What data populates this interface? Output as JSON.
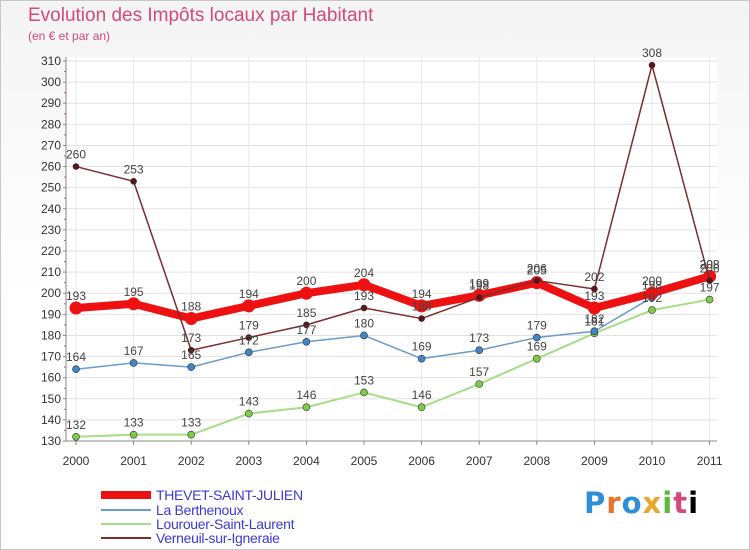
{
  "title": "Evolution des Impôts locaux par Habitant",
  "subtitle": "(en € et par an)",
  "brand": "Proxiti",
  "chart_data": {
    "type": "line",
    "title": "Evolution des Impôts locaux par Habitant",
    "subtitle": "(en € et par an)",
    "xlabel": "",
    "ylabel": "",
    "ylim": [
      130,
      310
    ],
    "ytick_step": 10,
    "grid": true,
    "legend_position": "bottom-left",
    "categories": [
      "2000",
      "2001",
      "2002",
      "2003",
      "2004",
      "2005",
      "2006",
      "2007",
      "2008",
      "2009",
      "2010",
      "2011"
    ],
    "series": [
      {
        "name": "THEVET-SAINT-JULIEN",
        "color": "#ee1111",
        "marker": "#ee1111",
        "values": [
          193,
          195,
          188,
          194,
          200,
          204,
          194,
          199,
          205,
          193,
          200,
          208
        ],
        "labels": [
          "193",
          "195",
          "188",
          "194",
          "200",
          "204",
          "194",
          "199",
          "205",
          "193",
          "200",
          "208"
        ]
      },
      {
        "name": "La Berthenoux",
        "color": "#6a9bc9",
        "marker": "#3f86c7",
        "values": [
          164,
          167,
          165,
          172,
          177,
          180,
          169,
          173,
          179,
          182,
          198,
          208
        ],
        "labels": [
          "164",
          "167",
          "165",
          "172",
          "177",
          "180",
          "169",
          "173",
          "179",
          "182",
          "198",
          "208"
        ]
      },
      {
        "name": "Lourouer-Saint-Laurent",
        "color": "#a6dd88",
        "marker": "#7ccc45",
        "values": [
          132,
          133,
          133,
          143,
          146,
          153,
          146,
          157,
          169,
          181,
          192,
          197
        ],
        "labels": [
          "132",
          "133",
          "133",
          "143",
          "146",
          "153",
          "146",
          "157",
          "169",
          "181",
          "192",
          "197"
        ]
      },
      {
        "name": "Verneuil-sur-Igneraie",
        "color": "#7c2d2d",
        "marker": "#5e1414",
        "values": [
          260,
          253,
          173,
          179,
          185,
          193,
          188,
          198,
          206,
          202,
          308,
          206
        ],
        "labels": [
          "260",
          "253",
          "173",
          "179",
          "185",
          "193",
          "188",
          "198",
          "206",
          "202",
          "308",
          "206"
        ]
      }
    ]
  }
}
